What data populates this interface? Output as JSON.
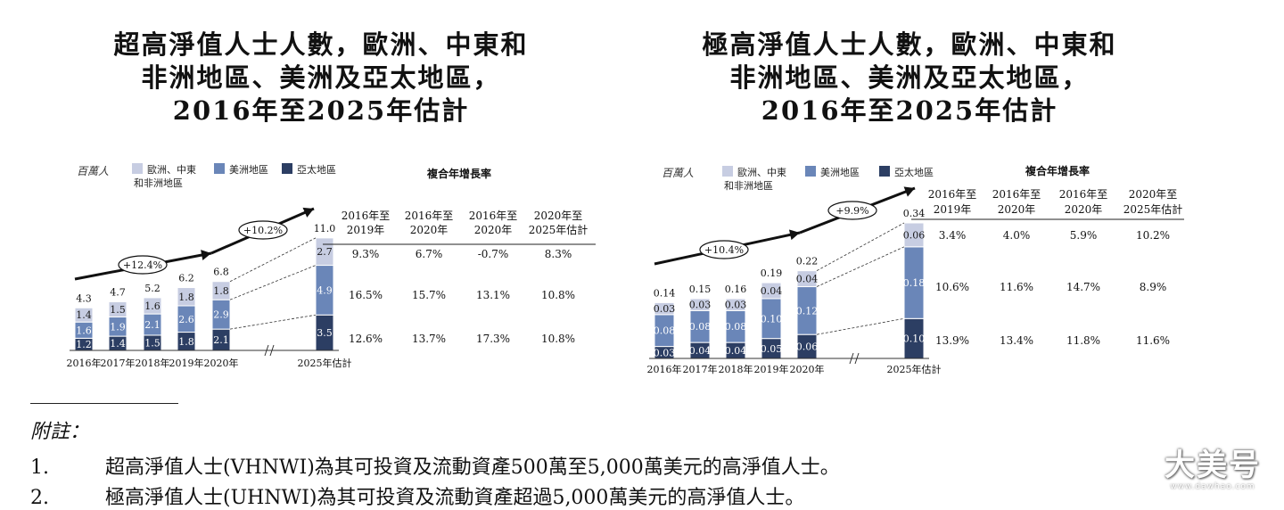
{
  "colors": {
    "emea": "#c7cde2",
    "americas": "#6a86b8",
    "apac": "#2c3e63",
    "arrow": "#111111"
  },
  "chart_data": [
    {
      "type": "bar",
      "stacked": true,
      "title_lines": [
        "超高淨值人士人數，歐洲、中東和",
        "非洲地區、美洲及亞太地區，",
        "2016年至2025年估計"
      ],
      "unit_label": "百萬人",
      "legend": [
        {
          "label": "歐洲、中東",
          "label2": "和非洲地區",
          "color": "#c7cde2"
        },
        {
          "label": "美洲地區",
          "color": "#6a86b8"
        },
        {
          "label": "亞太地區",
          "color": "#2c3e63"
        }
      ],
      "categories": [
        "2016年",
        "2017年",
        "2018年",
        "2019年",
        "2020年",
        "2025年估計"
      ],
      "series": [
        {
          "name": "亞太地區",
          "values": [
            "1.2",
            "1.4",
            "1.5",
            "1.8",
            "2.1",
            "3.5"
          ]
        },
        {
          "name": "美洲地區",
          "values": [
            "1.6",
            "1.9",
            "2.1",
            "2.6",
            "2.9",
            "4.9"
          ]
        },
        {
          "name": "歐洲、中東和非洲地區",
          "values": [
            "1.4",
            "1.5",
            "1.6",
            "1.8",
            "1.8",
            "2.7"
          ]
        }
      ],
      "totals": [
        "4.3",
        "4.7",
        "5.2",
        "6.2",
        "6.8",
        "11.0"
      ],
      "cagr_arrows": [
        "+12.4%",
        "+10.2%"
      ],
      "cagr_title": "複合年增長率",
      "cagr_headers": [
        [
          "2016年至",
          "2019年"
        ],
        [
          "2016年至",
          "2020年"
        ],
        [
          "2016年至",
          "2020年"
        ],
        [
          "2020年至",
          "2025年估計"
        ]
      ],
      "cagr_rows": [
        [
          "9.3%",
          "6.7%",
          "-0.7%",
          "8.3%"
        ],
        [
          "16.5%",
          "15.7%",
          "13.1%",
          "10.8%"
        ],
        [
          "12.6%",
          "13.7%",
          "17.3%",
          "10.8%"
        ]
      ]
    },
    {
      "type": "bar",
      "stacked": true,
      "title_lines": [
        "極高淨值人士人數，歐洲、中東和",
        "非洲地區、美洲及亞太地區，",
        "2016年至2025年估計"
      ],
      "unit_label": "百萬人",
      "legend": [
        {
          "label": "歐洲、中東",
          "label2": "和非洲地區",
          "color": "#c7cde2"
        },
        {
          "label": "美洲地區",
          "color": "#6a86b8"
        },
        {
          "label": "亞太地區",
          "color": "#2c3e63"
        }
      ],
      "categories": [
        "2016年",
        "2017年",
        "2018年",
        "2019年",
        "2020年",
        "2025年估計"
      ],
      "series": [
        {
          "name": "亞太地區",
          "values": [
            "0.03",
            "0.04",
            "0.04",
            "0.05",
            "0.06",
            "0.10"
          ]
        },
        {
          "name": "美洲地區",
          "values": [
            "0.08",
            "0.08",
            "0.08",
            "0.10",
            "0.12",
            "0.18"
          ]
        },
        {
          "name": "歐洲、中東和非洲地區",
          "values": [
            "0.03",
            "0.03",
            "0.03",
            "0.04",
            "0.04",
            "0.06"
          ]
        }
      ],
      "totals": [
        "0.14",
        "0.15",
        "0.16",
        "0.19",
        "0.22",
        "0.34"
      ],
      "cagr_arrows": [
        "+10.4%",
        "+9.9%"
      ],
      "cagr_title": "複合年增長率",
      "cagr_headers": [
        [
          "2016年至",
          "2019年"
        ],
        [
          "2016年至",
          "2020年"
        ],
        [
          "2016年至",
          "2020年"
        ],
        [
          "2020年至",
          "2025年估計"
        ]
      ],
      "cagr_rows": [
        [
          "3.4%",
          "4.0%",
          "5.9%",
          "10.2%"
        ],
        [
          "10.6%",
          "11.6%",
          "14.7%",
          "8.9%"
        ],
        [
          "13.9%",
          "13.4%",
          "11.8%",
          "11.6%"
        ]
      ]
    }
  ],
  "notes": {
    "heading": "附註：",
    "items": [
      {
        "num": "1.",
        "text": "超高淨值人士(VHNWI)為其可投資及流動資產500萬至5,000萬美元的高淨值人士。"
      },
      {
        "num": "2.",
        "text": "極高淨值人士(UHNWI)為其可投資及流動資產超過5,000萬美元的高淨值人士。"
      }
    ]
  },
  "watermark": {
    "main": "大美号",
    "sub": "www.dawhao.com"
  }
}
